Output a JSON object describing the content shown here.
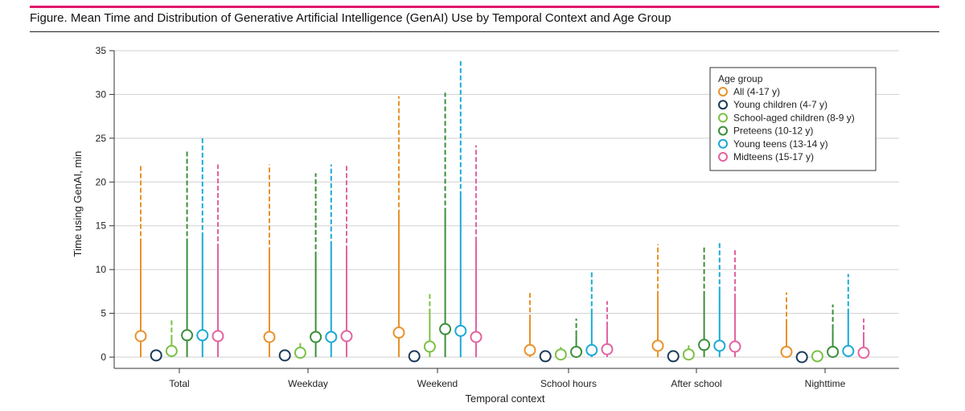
{
  "figure": {
    "title": "Figure. Mean Time and Distribution of Generative Artificial Intelligence (GenAI) Use by Temporal Context and Age Group",
    "accent_color": "#e0166b"
  },
  "chart_data": {
    "type": "scatter",
    "subtype": "mean-with-distribution-whiskers",
    "xlabel": "Temporal context",
    "ylabel": "Time using GenAI, min",
    "ylim": [
      0,
      35
    ],
    "yticks": [
      0,
      5,
      10,
      15,
      20,
      25,
      30,
      35
    ],
    "grid": true,
    "categories": [
      "Total",
      "Weekday",
      "Weekend",
      "School hours",
      "After school",
      "Nighttime"
    ],
    "legend": {
      "title": "Age group",
      "position": "top-right"
    },
    "series": [
      {
        "name": "All (4-17 y)",
        "color": "#e8922a",
        "mean": [
          2.4,
          2.3,
          2.8,
          0.8,
          1.3,
          0.6
        ],
        "solid_top": [
          13.0,
          12.0,
          16.3,
          4.3,
          7.0,
          3.8
        ],
        "dashed_top": [
          22.0,
          22.0,
          29.8,
          7.4,
          12.9,
          7.4
        ]
      },
      {
        "name": "Young children (4-7 y)",
        "color": "#1b3a57",
        "mean": [
          0.2,
          0.2,
          0.1,
          0.1,
          0.1,
          0.0
        ],
        "solid_top": [
          0.2,
          0.2,
          0.1,
          0.1,
          0.1,
          0.0
        ],
        "dashed_top": [
          0.2,
          0.2,
          0.1,
          0.1,
          0.1,
          0.0
        ]
      },
      {
        "name": "School-aged children (8-9 y)",
        "color": "#7ac143",
        "mean": [
          0.7,
          0.5,
          1.2,
          0.3,
          0.3,
          0.1
        ],
        "solid_top": [
          2.0,
          1.2,
          5.0,
          0.6,
          0.8,
          0.2
        ],
        "dashed_top": [
          4.2,
          1.6,
          7.4,
          1.2,
          1.5,
          0.4
        ]
      },
      {
        "name": "Preteens (10-12 y)",
        "color": "#3a8f3a",
        "mean": [
          2.5,
          2.3,
          3.2,
          0.6,
          1.4,
          0.6
        ],
        "solid_top": [
          13.0,
          11.5,
          16.5,
          2.5,
          7.0,
          3.2
        ],
        "dashed_top": [
          23.5,
          21.0,
          30.2,
          4.4,
          12.8,
          6.0
        ]
      },
      {
        "name": "Young teens (13-14 y)",
        "color": "#1ba9d8",
        "mean": [
          2.5,
          2.3,
          3.0,
          0.8,
          1.3,
          0.7
        ],
        "solid_top": [
          13.7,
          12.7,
          18.4,
          5.0,
          7.5,
          5.0
        ],
        "dashed_top": [
          25.0,
          22.0,
          33.8,
          9.9,
          13.3,
          9.5
        ]
      },
      {
        "name": "Midteens (15-17 y)",
        "color": "#e2639f",
        "mean": [
          2.4,
          2.4,
          2.3,
          0.9,
          1.2,
          0.5
        ],
        "solid_top": [
          12.4,
          12.2,
          13.2,
          3.5,
          6.7,
          2.3
        ],
        "dashed_top": [
          22.0,
          22.0,
          24.2,
          6.4,
          12.3,
          4.4
        ]
      }
    ]
  }
}
